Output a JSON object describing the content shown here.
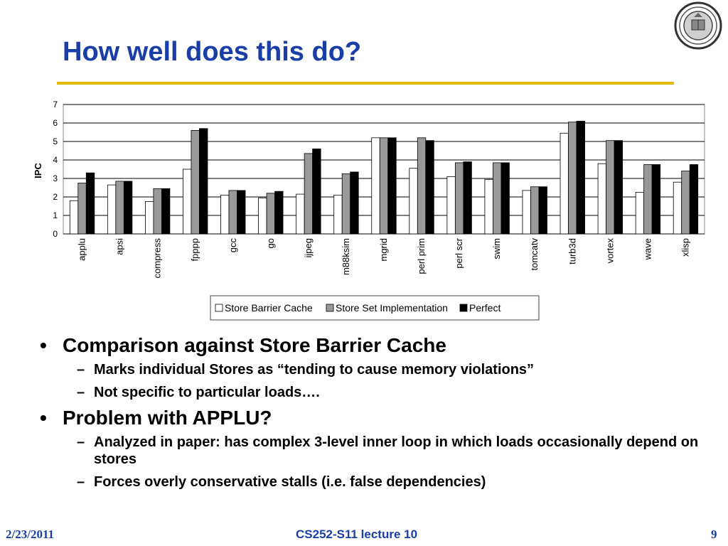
{
  "slide": {
    "title": "How well does this do?",
    "bullets": [
      {
        "text": "Comparison against Store Barrier Cache",
        "subs": [
          "Marks individual Stores as “tending to cause memory violations”",
          "Not specific to particular loads…."
        ]
      },
      {
        "text": "Problem with APPLU?",
        "subs": [
          "Analyzed in paper: has complex 3-level inner loop in which loads occasionally depend on stores",
          "Forces overly conservative stalls (i.e. false dependencies)"
        ]
      }
    ]
  },
  "footer": {
    "date": "2/23/2011",
    "course": "CS252-S11 lecture 10",
    "page": "9"
  },
  "logo": {
    "icon": "university-seal-icon",
    "text": "UNIVERSITY OF CALIFORNIA"
  },
  "colors": {
    "title": "#1a3ea8",
    "rule": "#e8b800",
    "series": [
      "#ffffff",
      "#999999",
      "#000000"
    ]
  },
  "chart_data": {
    "type": "bar",
    "title": "",
    "xlabel": "",
    "ylabel": "IPC",
    "ylim": [
      0,
      7
    ],
    "yticks": [
      0,
      1,
      2,
      3,
      4,
      5,
      6,
      7
    ],
    "grid": true,
    "legend": "bottom",
    "categories": [
      "applu",
      "apsi",
      "compress",
      "fpppp",
      "gcc",
      "go",
      "ijpeg",
      "m88ksim",
      "mgrid",
      "perl prim",
      "perl scr",
      "swim",
      "tomcatv",
      "turb3d",
      "vortex",
      "wave",
      "xlisp"
    ],
    "series": [
      {
        "name": "Store Barrier Cache",
        "values": [
          1.8,
          2.65,
          1.75,
          3.5,
          2.1,
          1.95,
          2.15,
          2.1,
          5.2,
          3.55,
          3.1,
          2.95,
          2.35,
          5.45,
          3.8,
          2.25,
          2.8
        ]
      },
      {
        "name": "Store Set Implementation",
        "values": [
          2.75,
          2.85,
          2.45,
          5.6,
          2.35,
          2.2,
          4.35,
          3.25,
          5.2,
          5.2,
          3.85,
          3.85,
          2.55,
          6.05,
          5.05,
          3.75,
          3.4
        ]
      },
      {
        "name": "Perfect",
        "values": [
          3.3,
          2.85,
          2.45,
          5.7,
          2.35,
          2.3,
          4.6,
          3.35,
          5.2,
          5.05,
          3.9,
          3.85,
          2.55,
          6.1,
          5.05,
          3.75,
          3.75
        ]
      }
    ]
  }
}
